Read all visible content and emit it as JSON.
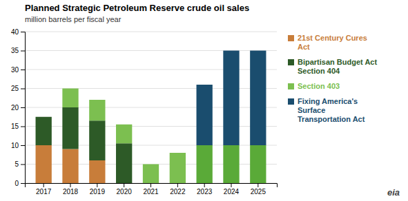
{
  "chart_data": {
    "type": "bar",
    "stacked": true,
    "title": "Planned Strategic Petroleum Reserve crude oil sales",
    "subtitle": "million barrels per fiscal year",
    "categories": [
      "2017",
      "2018",
      "2019",
      "2020",
      "2021",
      "2022",
      "2023",
      "2024",
      "2025"
    ],
    "series": [
      {
        "name": "21st Century Cures\nAct",
        "color": "#c87d3a",
        "values": [
          10,
          9,
          6,
          0,
          0,
          0,
          0,
          0,
          0
        ]
      },
      {
        "name": "Bipartisan Budget Act\nSection 404",
        "color": "#2d5a27",
        "values": [
          7.5,
          11,
          10.5,
          10.5,
          0,
          0,
          0,
          0,
          0
        ]
      },
      {
        "name": "Section 403",
        "color": "#7cbf50",
        "values": [
          0,
          5,
          5.5,
          5,
          5,
          8,
          0,
          0,
          0
        ]
      },
      {
        "color": "#5aaa38",
        "values": [
          0,
          0,
          0,
          0,
          0,
          0,
          10,
          10,
          10
        ]
      },
      {
        "name": "Fixing America's\nSurface\nTransportation Act",
        "color": "#1a4d6e",
        "values": [
          0,
          0,
          0,
          0,
          0,
          0,
          16,
          25,
          25
        ]
      }
    ],
    "ylim": [
      0,
      40
    ],
    "yticks": [
      0,
      5,
      10,
      15,
      20,
      25,
      30,
      35,
      40
    ],
    "grid": true,
    "legend": "right",
    "annotations": [
      "eia"
    ]
  }
}
